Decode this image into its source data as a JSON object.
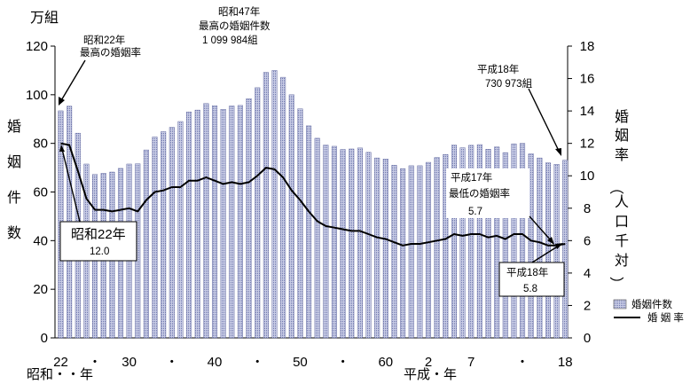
{
  "chart_data": {
    "type": "bar+line",
    "y_left_unit": "万組",
    "y_right_unit": "",
    "y_left_label": [
      "婚",
      "姻",
      "件",
      "数"
    ],
    "y_right_label": [
      "婚",
      "姻",
      "率",
      "（",
      "人",
      "口",
      "千",
      "対",
      "）"
    ],
    "y_left_ticks": [
      "0",
      "20",
      "40",
      "60",
      "80",
      "100",
      "120"
    ],
    "y_right_ticks": [
      "0",
      "2",
      "4",
      "6",
      "8",
      "10",
      "12",
      "14",
      "16",
      "18"
    ],
    "ylim_left": [
      0,
      120
    ],
    "ylim_right": [
      0,
      18
    ],
    "x_tick_labels": [
      "22",
      "・",
      "30",
      "・",
      "40",
      "・",
      "50",
      "・",
      "60",
      "2",
      "7",
      "・",
      "18"
    ],
    "x_era_labels": [
      "昭和・・年",
      "平成・年"
    ],
    "categories": [
      "S22",
      "S23",
      "S24",
      "S25",
      "S26",
      "S27",
      "S28",
      "S29",
      "S30",
      "S31",
      "S32",
      "S33",
      "S34",
      "S35",
      "S36",
      "S37",
      "S38",
      "S39",
      "S40",
      "S41",
      "S42",
      "S43",
      "S44",
      "S45",
      "S46",
      "S47",
      "S48",
      "S49",
      "S50",
      "S51",
      "S52",
      "S53",
      "S54",
      "S55",
      "S56",
      "S57",
      "S58",
      "S59",
      "S60",
      "S61",
      "S62",
      "S63",
      "H1",
      "H2",
      "H3",
      "H4",
      "H5",
      "H6",
      "H7",
      "H8",
      "H9",
      "H10",
      "H11",
      "H12",
      "H13",
      "H14",
      "H15",
      "H16",
      "H17",
      "H18"
    ],
    "series": [
      {
        "name": "婚姻件数",
        "axis": "left",
        "type": "bar",
        "values": [
          93.4,
          95.3,
          84.2,
          71.5,
          67.2,
          67.7,
          68.2,
          69.7,
          71.5,
          71.6,
          77.3,
          82.6,
          84.8,
          86.6,
          89.0,
          92.9,
          93.7,
          96.4,
          95.5,
          94.0,
          95.4,
          95.6,
          98.4,
          102.9,
          109.2,
          110.0,
          107.2,
          100.0,
          94.2,
          87.2,
          82.1,
          79.3,
          78.8,
          77.5,
          77.7,
          78.1,
          76.3,
          74.0,
          73.6,
          71.0,
          69.6,
          70.8,
          70.8,
          72.2,
          74.2,
          75.4,
          79.3,
          78.2,
          79.2,
          79.5,
          77.6,
          78.5,
          76.2,
          79.8,
          80.0,
          75.7,
          74.0,
          72.0,
          71.4,
          73.1
        ]
      },
      {
        "name": "婚 姻 率",
        "axis": "right",
        "type": "line",
        "values": [
          12.0,
          11.9,
          10.3,
          8.6,
          7.9,
          7.9,
          7.8,
          7.9,
          8.0,
          7.8,
          8.5,
          9.0,
          9.1,
          9.3,
          9.3,
          9.7,
          9.7,
          9.9,
          9.7,
          9.5,
          9.6,
          9.5,
          9.6,
          10.0,
          10.5,
          10.4,
          9.9,
          9.1,
          8.5,
          7.8,
          7.2,
          6.9,
          6.8,
          6.7,
          6.6,
          6.6,
          6.4,
          6.2,
          6.1,
          5.9,
          5.7,
          5.8,
          5.8,
          5.9,
          6.0,
          6.1,
          6.4,
          6.3,
          6.4,
          6.4,
          6.2,
          6.3,
          6.1,
          6.4,
          6.4,
          6.0,
          5.9,
          5.7,
          5.7,
          5.8
        ]
      }
    ],
    "legend": {
      "position": "bottom-right",
      "bar_label": "婚姻件数",
      "line_label": "婚 姻 率"
    },
    "annotations": {
      "peak_rate": [
        "昭和22年",
        "最高の婚姻率"
      ],
      "peak_count": [
        "昭和47年",
        "最高の婚姻件数",
        "1 099 984組"
      ],
      "h18_count": [
        "平成18年",
        "730 973組"
      ],
      "min_rate": [
        "平成17年",
        "最低の婚姻率",
        "5.7"
      ],
      "s22_rate_box": [
        "昭和22年",
        "12.0"
      ],
      "h18_rate_box": [
        "平成18年",
        "5.8"
      ]
    }
  }
}
